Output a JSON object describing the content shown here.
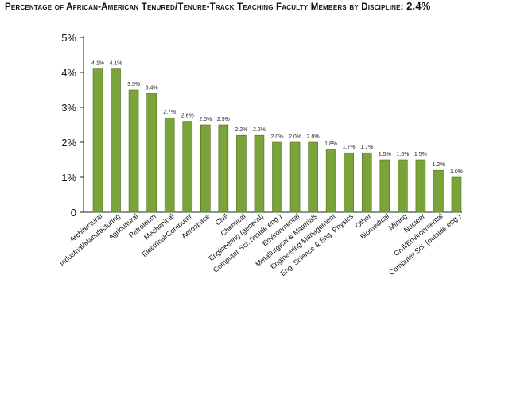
{
  "chart_data": {
    "type": "bar",
    "title": "Percentage of African-American Tenured/Tenure-Track Teaching Faculty Members by Discipline:",
    "title_value": "2.4%",
    "xlabel": "",
    "ylabel": "",
    "ylim": [
      0,
      5
    ],
    "yticks": [
      0,
      1,
      2,
      3,
      4,
      5
    ],
    "ytick_labels": [
      "0",
      "1%",
      "2%",
      "3%",
      "4%",
      "5%"
    ],
    "grid": false,
    "bar_color": "#7aa33a",
    "categories": [
      "Architectural",
      "Industrial/Manufacturing",
      "Agricultural",
      "Petroleum",
      "Mechanical",
      "Electrical/Computer",
      "Aerospace",
      "Civil",
      "Chemical",
      "Engineering (general)",
      "Computer Sci. (inside eng.)",
      "Environmental",
      "Metallurgical & Materials",
      "Engineering Management",
      "Eng. Science & Eng. Physics",
      "Other",
      "Biomedical",
      "Mining",
      "Nuclear",
      "Civil/Environmental",
      "Computer Sci. (outside eng.)"
    ],
    "values": [
      4.1,
      4.1,
      3.5,
      3.4,
      2.7,
      2.6,
      2.5,
      2.5,
      2.2,
      2.2,
      2.0,
      2.0,
      2.0,
      1.8,
      1.7,
      1.7,
      1.5,
      1.5,
      1.5,
      1.2,
      1.0
    ],
    "value_labels": [
      "4.1%",
      "4.1%",
      "3.5%",
      "3.4%",
      "2.7%",
      "2.6%",
      "2.5%",
      "2.5%",
      "2.2%",
      "2.2%",
      "2.0%",
      "2.0%",
      "2.0%",
      "1.8%",
      "1.7%",
      "1.7%",
      "1.5%",
      "1.5%",
      "1.5%",
      "1.2%",
      "1.0%"
    ]
  }
}
